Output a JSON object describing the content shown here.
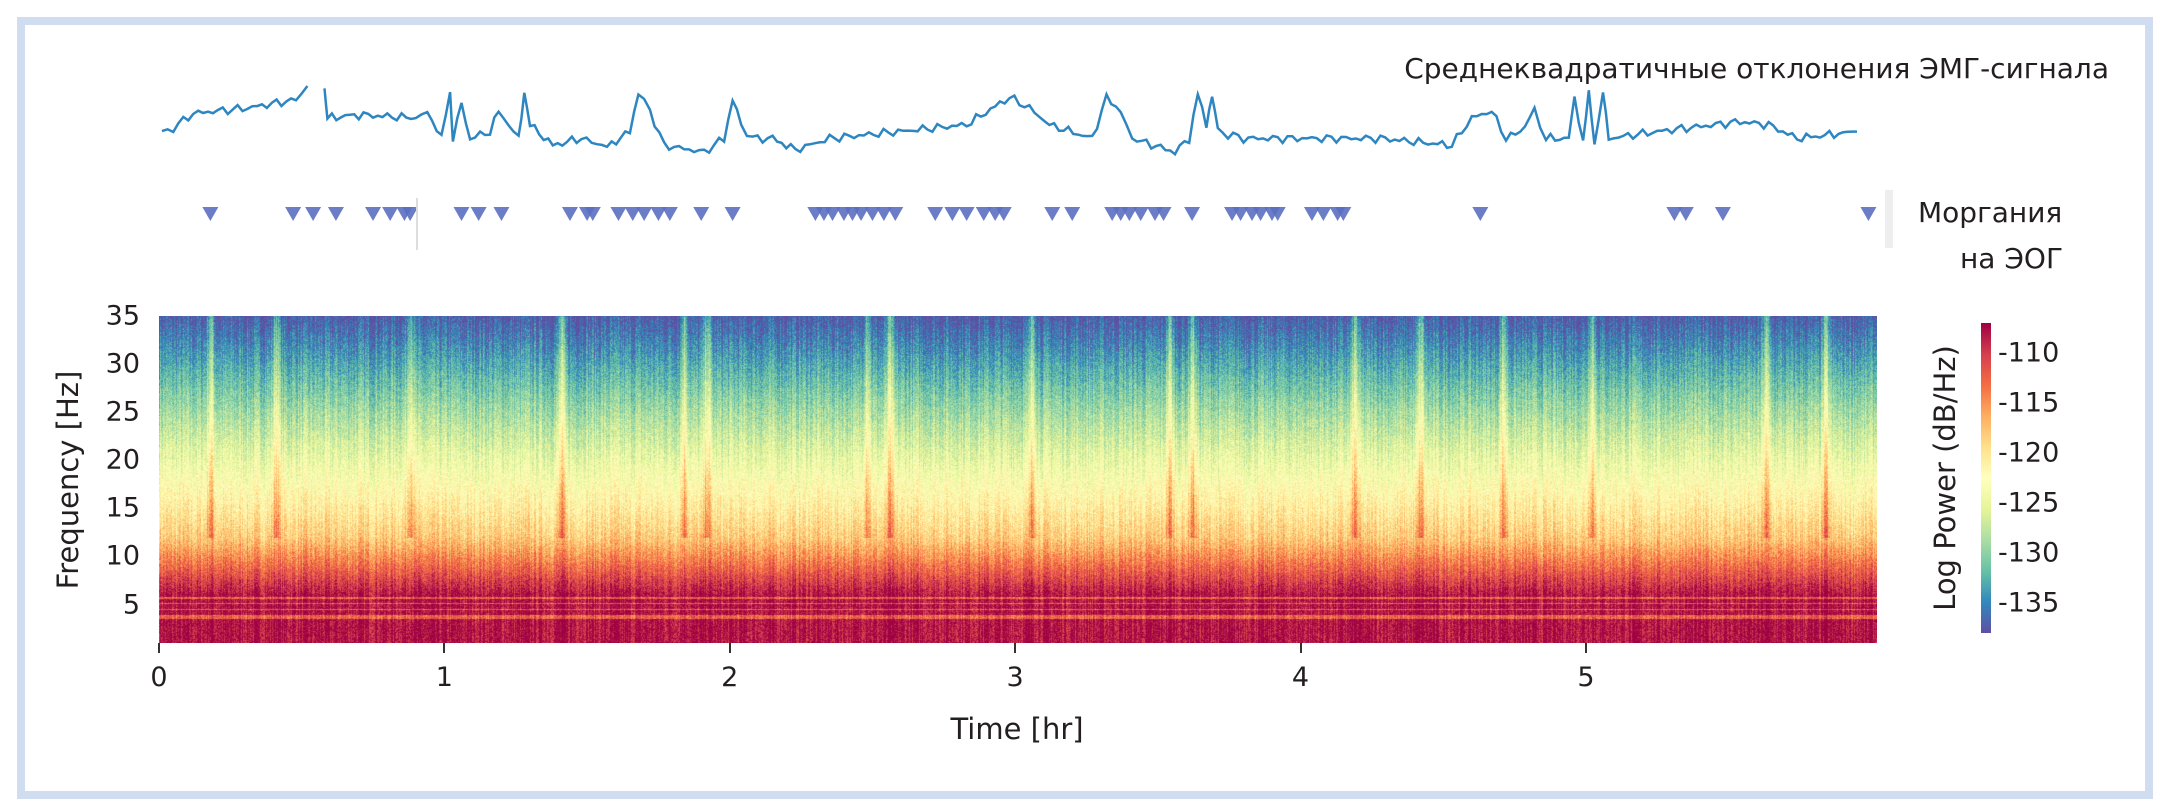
{
  "chart_data": {
    "type": "heatmap",
    "title": "",
    "xlabel": "Time [hr]",
    "ylabel": "Frequency [Hz]",
    "xlim": [
      0,
      6.02
    ],
    "ylim": [
      1,
      35
    ],
    "xticks": [
      "0",
      "1",
      "2",
      "3",
      "4",
      "5"
    ],
    "yticks": [
      "5",
      "10",
      "15",
      "20",
      "25",
      "30",
      "35"
    ],
    "colorbar": {
      "label": "Log Power (dB/Hz)",
      "ticks": [
        "-110",
        "-115",
        "-120",
        "-125",
        "-130",
        "-135"
      ],
      "range": [
        -138,
        -107
      ],
      "colormap": "Spectral_r"
    },
    "emg": {
      "label": "Среднеквадратичные отклонения ЭМГ-сигнала",
      "color": "#2e86c1",
      "segments": [
        [
          [
            0.01,
            0.36
          ],
          [
            0.05,
            0.45
          ],
          [
            0.12,
            0.64
          ],
          [
            0.31,
            0.71
          ],
          [
            0.48,
            0.82
          ],
          [
            0.52,
            1.0
          ]
        ],
        [
          [
            0.58,
            0.95
          ],
          [
            0.59,
            0.58
          ],
          [
            0.7,
            0.62
          ],
          [
            0.9,
            0.58
          ],
          [
            0.94,
            0.67
          ],
          [
            0.99,
            0.31
          ],
          [
            1.02,
            0.95
          ],
          [
            1.03,
            0.31
          ],
          [
            1.06,
            0.76
          ],
          [
            1.09,
            0.31
          ],
          [
            1.16,
            0.4
          ],
          [
            1.19,
            0.67
          ],
          [
            1.26,
            0.31
          ],
          [
            1.28,
            0.93
          ],
          [
            1.3,
            0.49
          ],
          [
            1.38,
            0.22
          ],
          [
            1.48,
            0.31
          ],
          [
            1.57,
            0.2
          ],
          [
            1.65,
            0.4
          ],
          [
            1.68,
            0.93
          ],
          [
            1.72,
            0.67
          ],
          [
            1.77,
            0.22
          ],
          [
            1.91,
            0.13
          ],
          [
            1.98,
            0.31
          ],
          [
            2.01,
            0.82
          ],
          [
            2.04,
            0.49
          ],
          [
            2.08,
            0.31
          ],
          [
            2.15,
            0.31
          ],
          [
            2.23,
            0.16
          ],
          [
            2.35,
            0.31
          ],
          [
            2.59,
            0.4
          ],
          [
            2.83,
            0.49
          ],
          [
            2.98,
            0.85
          ],
          [
            3.05,
            0.71
          ],
          [
            3.12,
            0.49
          ],
          [
            3.27,
            0.31
          ],
          [
            3.32,
            0.85
          ],
          [
            3.37,
            0.67
          ],
          [
            3.41,
            0.31
          ],
          [
            3.56,
            0.13
          ],
          [
            3.61,
            0.31
          ],
          [
            3.64,
            0.89
          ],
          [
            3.67,
            0.49
          ],
          [
            3.69,
            0.89
          ],
          [
            3.71,
            0.4
          ],
          [
            3.8,
            0.31
          ],
          [
            4.04,
            0.31
          ],
          [
            4.28,
            0.31
          ],
          [
            4.53,
            0.22
          ],
          [
            4.6,
            0.58
          ],
          [
            4.67,
            0.67
          ],
          [
            4.72,
            0.31
          ],
          [
            4.77,
            0.4
          ],
          [
            4.82,
            0.67
          ],
          [
            4.86,
            0.31
          ],
          [
            4.94,
            0.31
          ],
          [
            4.96,
            0.85
          ],
          [
            4.99,
            0.27
          ],
          [
            5.01,
            0.89
          ],
          [
            5.03,
            0.27
          ],
          [
            5.06,
            0.89
          ],
          [
            5.08,
            0.31
          ],
          [
            5.25,
            0.4
          ],
          [
            5.54,
            0.53
          ],
          [
            5.64,
            0.49
          ],
          [
            5.74,
            0.31
          ],
          [
            5.95,
            0.4
          ]
        ]
      ]
    },
    "blinks": {
      "label_line1": "Моргания",
      "label_line2": "на ЭОГ",
      "color": "#5b6fc0",
      "times": [
        0.18,
        0.47,
        0.54,
        0.62,
        0.75,
        0.81,
        0.86,
        0.88,
        1.06,
        1.12,
        1.2,
        1.44,
        1.5,
        1.52,
        1.61,
        1.66,
        1.7,
        1.75,
        1.79,
        1.9,
        2.01,
        2.3,
        2.33,
        2.36,
        2.4,
        2.43,
        2.46,
        2.5,
        2.54,
        2.58,
        2.72,
        2.78,
        2.83,
        2.89,
        2.93,
        2.96,
        3.13,
        3.2,
        3.34,
        3.37,
        3.4,
        3.44,
        3.49,
        3.52,
        3.62,
        3.76,
        3.79,
        3.83,
        3.86,
        3.9,
        3.92,
        4.04,
        4.08,
        4.13,
        4.15,
        4.63,
        5.31,
        5.35,
        5.48,
        5.99
      ]
    },
    "bright_stripes_hr": [
      0.18,
      0.41,
      0.88,
      1.41,
      1.84,
      1.92,
      2.48,
      2.56,
      3.06,
      3.54,
      3.62,
      4.19,
      4.42,
      4.71,
      5.02,
      5.63,
      5.84
    ]
  }
}
